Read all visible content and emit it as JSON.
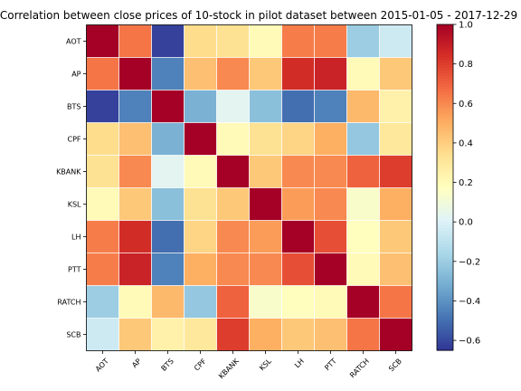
{
  "chart_data": {
    "type": "heatmap",
    "title": "Correlation between close prices of 10-stock in pilot dataset between 2015-01-05 - 2017-12-29",
    "xlabel": "",
    "ylabel": "",
    "categories": [
      "AOT",
      "AP",
      "BTS",
      "CPF",
      "KBANK",
      "KSL",
      "LH",
      "PTT",
      "RATCH",
      "SCB"
    ],
    "matrix": [
      [
        1.0,
        0.65,
        -0.62,
        0.35,
        0.33,
        0.2,
        0.63,
        0.63,
        -0.2,
        -0.05
      ],
      [
        0.65,
        1.0,
        -0.45,
        0.45,
        0.6,
        0.42,
        0.85,
        0.88,
        0.2,
        0.42
      ],
      [
        -0.62,
        -0.45,
        1.0,
        -0.3,
        0.03,
        -0.25,
        -0.5,
        -0.45,
        0.47,
        0.25
      ],
      [
        0.35,
        0.45,
        -0.3,
        1.0,
        0.2,
        0.33,
        0.38,
        0.5,
        -0.22,
        0.3
      ],
      [
        0.33,
        0.6,
        0.03,
        0.2,
        1.0,
        0.42,
        0.6,
        0.6,
        0.7,
        0.8
      ],
      [
        0.2,
        0.42,
        -0.25,
        0.33,
        0.42,
        1.0,
        0.55,
        0.6,
        0.14,
        0.5
      ],
      [
        0.63,
        0.85,
        -0.5,
        0.38,
        0.6,
        0.55,
        1.0,
        0.75,
        0.18,
        0.42
      ],
      [
        0.63,
        0.88,
        -0.45,
        0.5,
        0.6,
        0.6,
        0.75,
        1.0,
        0.2,
        0.45
      ],
      [
        -0.2,
        0.2,
        0.47,
        -0.22,
        0.7,
        0.14,
        0.18,
        0.2,
        1.0,
        0.65
      ],
      [
        -0.05,
        0.42,
        0.25,
        0.3,
        0.8,
        0.5,
        0.42,
        0.45,
        0.65,
        1.0
      ]
    ],
    "colorscale": "RdYlBu_r",
    "colorbar": {
      "min": -0.65,
      "max": 1.0,
      "ticks": [
        1.0,
        0.8,
        0.6,
        0.4,
        0.2,
        0.0,
        -0.2,
        -0.4,
        -0.6
      ],
      "tick_labels": [
        "1.0",
        "0.8",
        "0.6",
        "0.4",
        "0.2",
        "0.0",
        "−0.2",
        "−0.4",
        "−0.6"
      ]
    },
    "grid": true,
    "grid_color": "#ffffff",
    "legend": "colorbar-right"
  }
}
